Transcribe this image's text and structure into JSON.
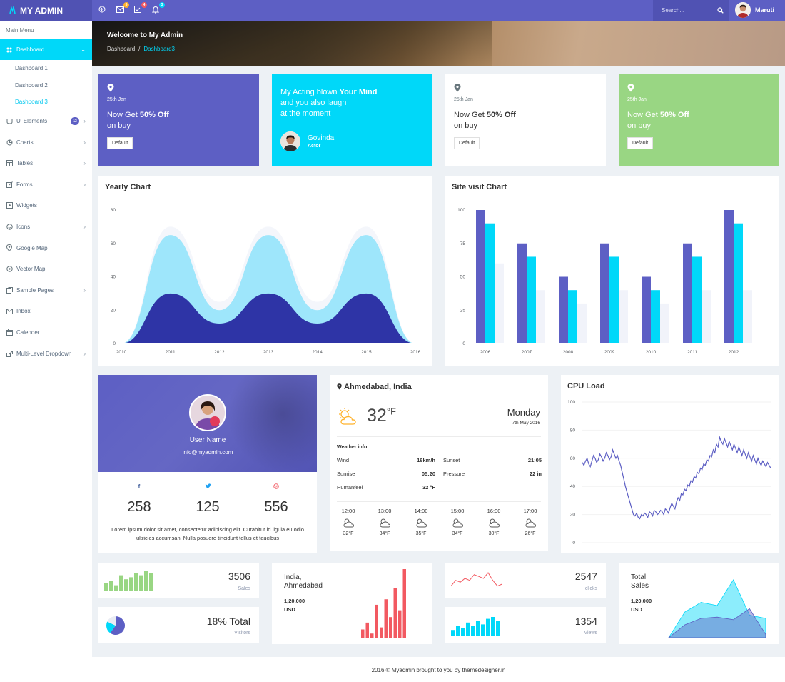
{
  "brand": {
    "name": "MY ADMIN"
  },
  "topbar": {
    "badges": [
      "5",
      "4",
      "3"
    ],
    "search_placeholder": "Search...",
    "user_name": "Maruti"
  },
  "sidebar": {
    "menu_title": "Main Menu",
    "dashboard": "Dashboard",
    "sub": [
      "Dashboard 1",
      "Dashboard 2",
      "Dashboard 3"
    ],
    "items": [
      "Ui Elements",
      "Charts",
      "Tables",
      "Forms",
      "Widgets",
      "Icons",
      "Google Map",
      "Vector Map",
      "Sample Pages",
      "Inbox",
      "Calender",
      "Multi-Level Dropdown"
    ],
    "ui_badge": "13"
  },
  "banner": {
    "title": "Welcome to My Admin",
    "crumb1": "Dashboard",
    "sep": "/",
    "crumb2": "Dashboard3"
  },
  "promos": [
    {
      "date": "25th Jan",
      "line1_pre": "Now Get ",
      "line1_bold": "50% Off",
      "line2": "on buy",
      "button": "Default"
    },
    {
      "date": "25th Jan",
      "line1_pre": "Now Get ",
      "line1_bold": "50% Off",
      "line2": "on buy",
      "button": "Default"
    },
    {
      "date": "25th Jan",
      "line1_pre": "Now Get ",
      "line1_bold": "50% Off",
      "line2": "on buy",
      "button": "Default"
    }
  ],
  "quote": {
    "line1_pre": "My Acting blown ",
    "line1_bold": "Your Mind",
    "line2": "and you also laugh",
    "line3": "at the moment",
    "name": "Govinda",
    "role": "Actor"
  },
  "yearly_chart": {
    "title": "Yearly Chart"
  },
  "site_chart": {
    "title": "Site visit Chart"
  },
  "profile": {
    "name": "User Name",
    "email": "info@myadmin.com",
    "facebook": "258",
    "twitter": "125",
    "dribbble": "556",
    "desc": "Lorem ipsum dolor sit amet, consectetur adipiscing elit. Curabitur id ligula eu odio ultricies accumsan. Nulla posuere tincidunt tellus et faucibus"
  },
  "weather": {
    "location": "Ahmedabad, India",
    "temp": "32",
    "unit": "°F",
    "day": "Monday",
    "date": "7th May 2016",
    "info_title": "Weather info",
    "rows": [
      {
        "k1": "Wind",
        "v1": "16km/h",
        "k2": "Sunset",
        "v2": "21:05"
      },
      {
        "k1": "Sunrise",
        "v1": "05:20",
        "k2": "Pressure",
        "v2": "22 in"
      },
      {
        "k1": "Humanfeel",
        "v1": "32 °F",
        "k2": "",
        "v2": ""
      }
    ],
    "hours": [
      {
        "t": "12:00",
        "temp": "32°F"
      },
      {
        "t": "13:00",
        "temp": "34°F"
      },
      {
        "t": "14:00",
        "temp": "35°F"
      },
      {
        "t": "15:00",
        "temp": "34°F"
      },
      {
        "t": "16:00",
        "temp": "30°F"
      },
      {
        "t": "17:00",
        "temp": "26°F"
      }
    ]
  },
  "cpu": {
    "title": "CPU Load"
  },
  "stats": {
    "sales": {
      "value": "3506",
      "label": "Sales"
    },
    "visitors": {
      "value": "18% Total",
      "label": "Visitors"
    },
    "india": {
      "line1": "India,",
      "line2": "Ahmedabad",
      "value": "1,20,000",
      "unit": "USD"
    },
    "clicks": {
      "value": "2547",
      "label": "clicks"
    },
    "views": {
      "value": "1354",
      "label": "Views"
    },
    "total": {
      "line1": "Total",
      "line2": "Sales",
      "value": "1,20,000",
      "unit": "USD"
    }
  },
  "footer": {
    "text": "2016 © Myadmin brought to you by themedesigner.in"
  },
  "colors": {
    "primary": "#5d5fc4",
    "cyan": "#00d8f9",
    "green": "#99d683",
    "red": "#f25961"
  },
  "chart_data": [
    {
      "type": "area",
      "x": [
        2010,
        2011,
        2012,
        2013,
        2014,
        2015,
        2016
      ],
      "ylim": [
        0,
        80
      ],
      "yticks": [
        0,
        20,
        40,
        60,
        80
      ],
      "series": [
        {
          "values": [
            0,
            70,
            25,
            70,
            25,
            70,
            0
          ]
        },
        {
          "values": [
            0,
            65,
            20,
            65,
            20,
            65,
            0
          ]
        },
        {
          "values": [
            0,
            30,
            12,
            30,
            12,
            30,
            0
          ]
        }
      ]
    },
    {
      "type": "bar",
      "categories": [
        "2006",
        "2007",
        "2008",
        "2009",
        "2010",
        "2011",
        "2012"
      ],
      "ylim": [
        0,
        100
      ],
      "yticks": [
        0,
        25,
        50,
        75,
        100
      ],
      "series": [
        {
          "values": [
            100,
            75,
            50,
            75,
            50,
            75,
            100
          ]
        },
        {
          "values": [
            90,
            65,
            40,
            65,
            40,
            65,
            90
          ]
        },
        {
          "values": [
            60,
            40,
            30,
            40,
            30,
            40,
            40
          ]
        }
      ]
    },
    {
      "type": "line",
      "ylim": [
        0,
        100
      ],
      "yticks": [
        0,
        20,
        40,
        60,
        80,
        100
      ],
      "values": [
        57,
        55,
        58,
        60,
        56,
        54,
        58,
        62,
        60,
        57,
        59,
        63,
        61,
        58,
        60,
        64,
        62,
        59,
        61,
        66,
        63,
        60,
        62,
        58,
        55,
        50,
        45,
        40,
        36,
        32,
        28,
        24,
        20,
        19,
        21,
        18,
        17,
        20,
        19,
        21,
        20,
        18,
        22,
        21,
        19,
        23,
        22,
        20,
        21,
        23,
        22,
        20,
        24,
        23,
        21,
        25,
        28,
        26,
        24,
        29,
        32,
        30,
        35,
        34,
        38,
        37,
        41,
        40,
        44,
        43,
        47,
        46,
        50,
        49,
        53,
        52,
        56,
        55,
        59,
        58,
        62,
        61,
        66,
        64,
        70,
        68,
        75,
        72,
        70,
        74,
        71,
        68,
        72,
        69,
        66,
        70,
        67,
        64,
        68,
        65,
        62,
        66,
        63,
        60,
        64,
        61,
        58,
        62,
        59,
        56,
        60,
        57,
        55,
        58,
        56,
        54,
        57,
        55,
        53
      ]
    },
    {
      "type": "bar",
      "name": "sales-spark",
      "values": [
        4,
        5,
        3,
        8,
        6,
        7,
        9,
        8,
        10,
        9
      ]
    },
    {
      "type": "pie",
      "name": "visitors-pie",
      "values": [
        60,
        22,
        18
      ]
    },
    {
      "type": "bar",
      "name": "india-bars",
      "values": [
        12,
        22,
        6,
        48,
        15,
        56,
        30,
        72,
        40,
        100
      ]
    },
    {
      "type": "line",
      "name": "clicks-spark",
      "values": [
        2,
        5,
        4,
        6,
        5,
        8,
        7,
        6,
        9,
        5,
        2,
        3
      ]
    },
    {
      "type": "bar",
      "name": "views-spark",
      "values": [
        3,
        5,
        4,
        7,
        5,
        8,
        6,
        9,
        10,
        8
      ]
    },
    {
      "type": "area",
      "name": "total-sales",
      "series": [
        {
          "values": [
            0,
            40,
            55,
            50,
            90,
            35,
            30
          ]
        },
        {
          "values": [
            0,
            20,
            30,
            32,
            28,
            45,
            5
          ]
        }
      ]
    }
  ]
}
